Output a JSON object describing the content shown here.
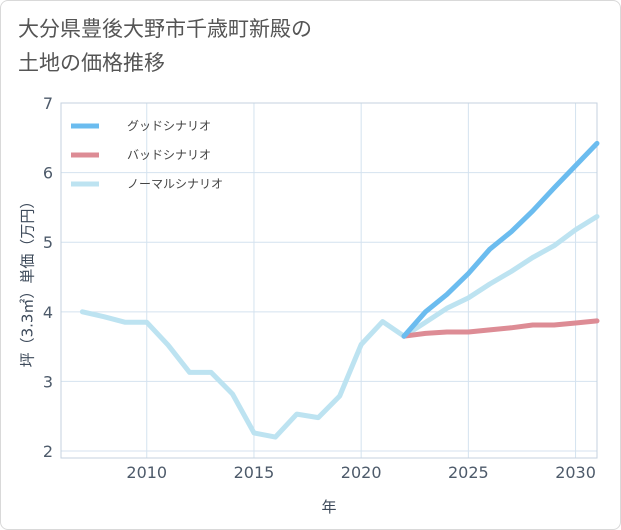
{
  "title": {
    "line1": "大分県豊後大野市千歳町新殿の",
    "line2": "土地の価格推移"
  },
  "colors": {
    "good": "#6bbcef",
    "bad": "#dd8c95",
    "normal": "#bde3f1",
    "grid": "#d4e2ef",
    "frame": "#c5d2df"
  },
  "chart_data": {
    "type": "line",
    "xlabel": "年",
    "ylabel": "坪（3.3㎡）単価（万円）",
    "xlim": [
      2006,
      2031
    ],
    "ylim": [
      1.9,
      7.0
    ],
    "x_ticks": [
      2010,
      2015,
      2020,
      2025,
      2030
    ],
    "y_ticks": [
      2,
      3,
      4,
      5,
      6,
      7
    ],
    "legend_position": "top-left",
    "series": [
      {
        "key": "good",
        "name": "グッドシナリオ",
        "x": [
          2022,
          2023,
          2024,
          2025,
          2026,
          2027,
          2028,
          2029,
          2030,
          2031
        ],
        "y": [
          3.65,
          4.0,
          4.25,
          4.55,
          4.9,
          5.15,
          5.45,
          5.78,
          6.1,
          6.42
        ]
      },
      {
        "key": "bad",
        "name": "バッドシナリオ",
        "x": [
          2022,
          2023,
          2024,
          2025,
          2026,
          2027,
          2028,
          2029,
          2030,
          2031
        ],
        "y": [
          3.65,
          3.69,
          3.71,
          3.71,
          3.74,
          3.77,
          3.81,
          3.81,
          3.84,
          3.87
        ]
      },
      {
        "key": "normal",
        "name": "ノーマルシナリオ",
        "x": [
          2007,
          2008,
          2009,
          2010,
          2011,
          2012,
          2013,
          2014,
          2015,
          2016,
          2017,
          2018,
          2019,
          2020,
          2021,
          2022,
          2023,
          2024,
          2025,
          2026,
          2027,
          2028,
          2029,
          2030,
          2031
        ],
        "y": [
          4.0,
          3.93,
          3.85,
          3.85,
          3.52,
          3.13,
          3.13,
          2.82,
          2.26,
          2.2,
          2.53,
          2.48,
          2.79,
          3.53,
          3.86,
          3.65,
          3.85,
          4.05,
          4.2,
          4.4,
          4.58,
          4.78,
          4.95,
          5.18,
          5.37
        ]
      }
    ]
  }
}
